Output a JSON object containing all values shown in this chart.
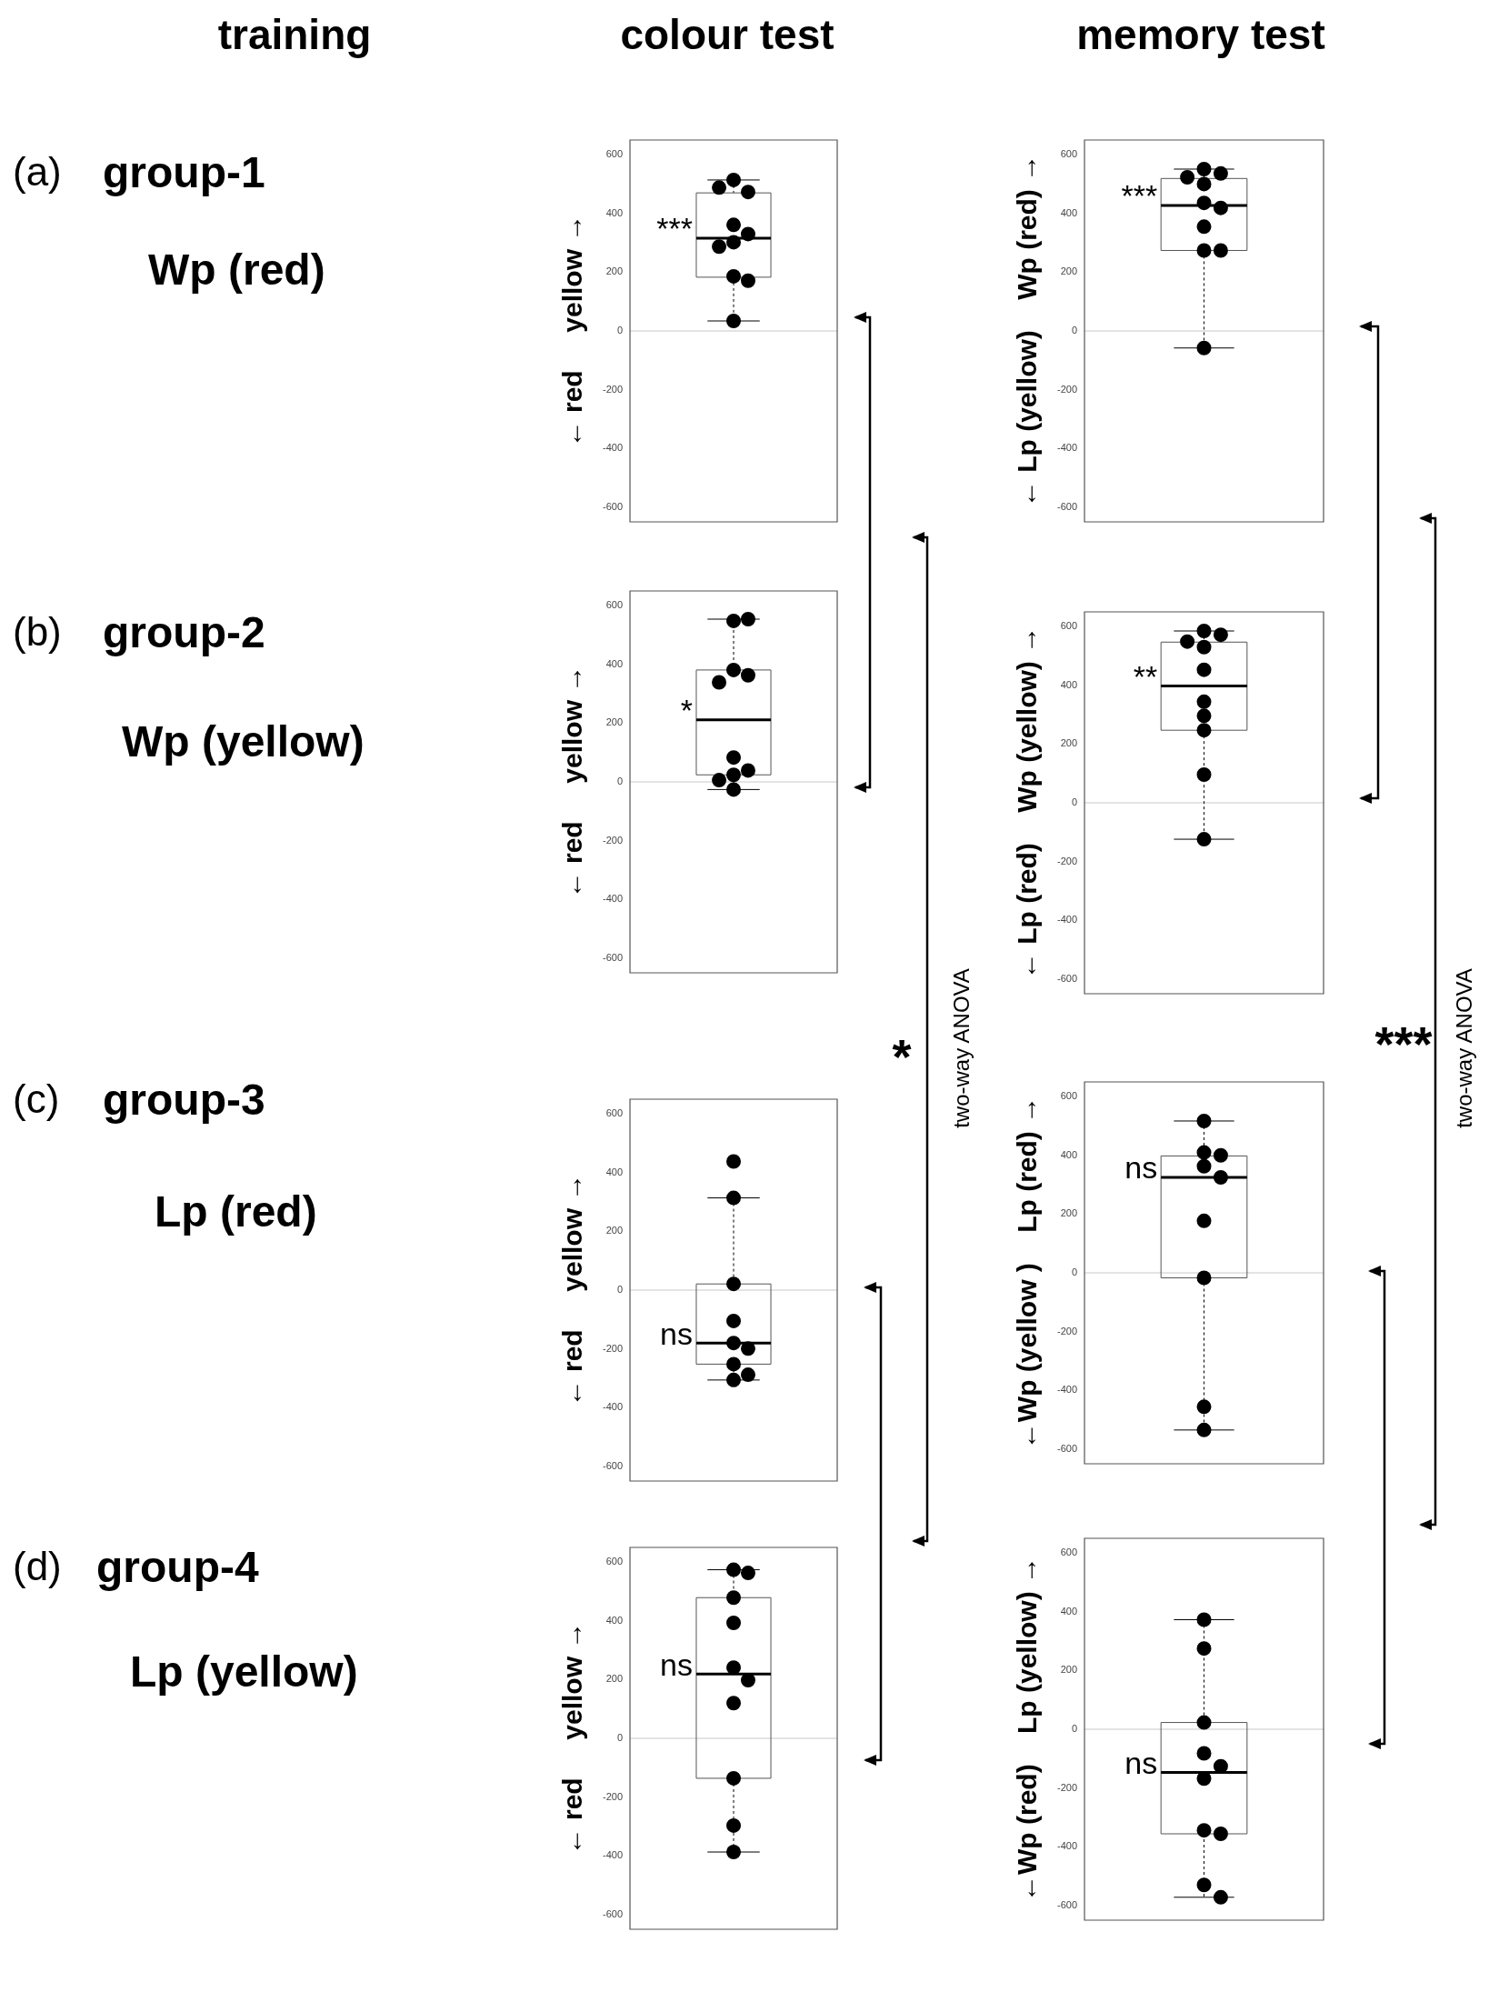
{
  "chart_data": [
    {
      "type": "box",
      "categories": [
        null
      ],
      "ylabel": "← red     yellow →",
      "ylim": [
        -650,
        650
      ],
      "yticks": [
        -600,
        -400,
        -200,
        0,
        200,
        400,
        600
      ],
      "boxes": [
        {
          "low": 34,
          "q1": 183,
          "median": 316,
          "q3": 470,
          "high": 514
        }
      ],
      "series": [
        {
          "type": "scatter",
          "color": "#000000",
          "x": [
            null,
            null,
            null,
            null,
            null,
            null,
            null,
            null,
            null,
            null
          ],
          "values": [
            514,
            473,
            488,
            361,
            330,
            302,
            287,
            186,
            171,
            34
          ]
        }
      ],
      "marker": "circle",
      "annotations": [
        "***"
      ],
      "ref_lines": [
        {
          "axis": "y",
          "value": 0,
          "color": "#c8c8c8"
        }
      ]
    },
    {
      "type": "box",
      "categories": [
        null
      ],
      "ylabel": "← Lp (yellow)    Wp (red) →",
      "ylim": [
        -650,
        650
      ],
      "yticks": [
        -600,
        -400,
        -200,
        0,
        200,
        400,
        600
      ],
      "boxes": [
        {
          "low": -58,
          "q1": 274,
          "median": 427,
          "q3": 519,
          "high": 551
        }
      ],
      "series": [
        {
          "type": "scatter",
          "color": "#000000",
          "x": [
            null,
            null,
            null,
            null,
            null,
            null,
            null,
            null,
            null,
            null
          ],
          "values": [
            551,
            536,
            500,
            523,
            436,
            419,
            355,
            274,
            274,
            -58
          ]
        }
      ],
      "marker": "circle",
      "annotations": [
        "***"
      ],
      "ref_lines": [
        {
          "axis": "y",
          "value": 0,
          "color": "#c8c8c8"
        }
      ]
    },
    {
      "type": "box",
      "categories": [
        null
      ],
      "ylabel": "← red     yellow →",
      "ylim": [
        -650,
        650
      ],
      "yticks": [
        -600,
        -400,
        -200,
        0,
        200,
        400,
        600
      ],
      "boxes": [
        {
          "low": -26,
          "q1": 24,
          "median": 211,
          "q3": 381,
          "high": 554
        }
      ],
      "series": [
        {
          "type": "scatter",
          "color": "#000000",
          "x": [
            null,
            null,
            null,
            null,
            null,
            null,
            null,
            null,
            null,
            null
          ],
          "values": [
            548,
            554,
            381,
            363,
            339,
            83,
            39,
            24,
            6,
            -26
          ]
        }
      ],
      "marker": "circle",
      "annotations": [
        "*"
      ],
      "ref_lines": [
        {
          "axis": "y",
          "value": 0,
          "color": "#c8c8c8"
        }
      ]
    },
    {
      "type": "box",
      "categories": [
        null
      ],
      "ylabel": "← Lp (red)    Wp (yellow) →",
      "ylim": [
        -650,
        650
      ],
      "yticks": [
        -600,
        -400,
        -200,
        0,
        200,
        400,
        600
      ],
      "boxes": [
        {
          "low": -124,
          "q1": 247,
          "median": 398,
          "q3": 547,
          "high": 585
        }
      ],
      "series": [
        {
          "type": "scatter",
          "color": "#000000",
          "x": [
            null,
            null,
            null,
            null,
            null,
            null,
            null,
            null,
            null,
            null
          ],
          "values": [
            585,
            572,
            549,
            530,
            453,
            344,
            296,
            247,
            96,
            -124
          ]
        }
      ],
      "marker": "circle",
      "annotations": [
        "**"
      ],
      "ref_lines": [
        {
          "axis": "y",
          "value": 0,
          "color": "#c8c8c8"
        }
      ]
    },
    {
      "type": "box",
      "categories": [
        null
      ],
      "ylabel": "← red     yellow →",
      "ylim": [
        -650,
        650
      ],
      "yticks": [
        -600,
        -400,
        -200,
        0,
        200,
        400,
        600
      ],
      "boxes": [
        {
          "low": -306,
          "q1": -252,
          "median": -180,
          "q3": 21,
          "high": 314
        }
      ],
      "series": [
        {
          "type": "scatter",
          "color": "#000000",
          "x": [
            null,
            null,
            null,
            null,
            null,
            null,
            null,
            null,
            null
          ],
          "values": [
            438,
            314,
            21,
            -105,
            -180,
            -199,
            -252,
            -288,
            -306
          ]
        }
      ],
      "marker": "circle",
      "annotations": [
        "ns"
      ],
      "ref_lines": [
        {
          "axis": "y",
          "value": 0,
          "color": "#c8c8c8"
        }
      ]
    },
    {
      "type": "box",
      "categories": [
        null
      ],
      "ylabel": "←Wp (yellow )    Lp (red) →",
      "ylim": [
        -650,
        650
      ],
      "yticks": [
        -600,
        -400,
        -200,
        0,
        200,
        400,
        600
      ],
      "boxes": [
        {
          "low": -535,
          "q1": -17,
          "median": 325,
          "q3": 398,
          "high": 517
        }
      ],
      "series": [
        {
          "type": "scatter",
          "color": "#000000",
          "x": [
            null,
            null,
            null,
            null,
            null,
            null,
            null,
            null,
            null
          ],
          "values": [
            517,
            410,
            400,
            363,
            325,
            177,
            -17,
            -456,
            -535
          ]
        }
      ],
      "marker": "circle",
      "annotations": [
        "ns"
      ],
      "ref_lines": [
        {
          "axis": "y",
          "value": 0,
          "color": "#c8c8c8"
        }
      ]
    },
    {
      "type": "box",
      "categories": [
        null
      ],
      "ylabel": "← red     yellow →",
      "ylim": [
        -650,
        650
      ],
      "yticks": [
        -600,
        -400,
        -200,
        0,
        200,
        400,
        600
      ],
      "boxes": [
        {
          "low": -387,
          "q1": -136,
          "median": 219,
          "q3": 479,
          "high": 574
        }
      ],
      "series": [
        {
          "type": "scatter",
          "color": "#000000",
          "x": [
            null,
            null,
            null,
            null,
            null,
            null,
            null,
            null,
            null,
            null
          ],
          "values": [
            574,
            563,
            479,
            393,
            241,
            198,
            120,
            -136,
            -297,
            -387
          ]
        }
      ],
      "marker": "circle",
      "annotations": [
        "ns"
      ],
      "ref_lines": [
        {
          "axis": "y",
          "value": 0,
          "color": "#c8c8c8"
        }
      ]
    },
    {
      "type": "box",
      "categories": [
        null
      ],
      "ylabel": "←Wp (red)    Lp (yellow) →",
      "ylim": [
        -650,
        650
      ],
      "yticks": [
        -600,
        -400,
        -200,
        0,
        200,
        400,
        600
      ],
      "boxes": [
        {
          "low": -572,
          "q1": -356,
          "median": -147,
          "q3": 23,
          "high": 373
        }
      ],
      "series": [
        {
          "type": "scatter",
          "color": "#000000",
          "x": [
            null,
            null,
            null,
            null,
            null,
            null,
            null,
            null,
            null,
            null
          ],
          "values": [
            373,
            275,
            23,
            -82,
            -126,
            -168,
            -344,
            -356,
            -530,
            -572
          ]
        }
      ],
      "marker": "circle",
      "annotations": [
        "ns"
      ],
      "ref_lines": [
        {
          "axis": "y",
          "value": 0,
          "color": "#c8c8c8"
        }
      ]
    },
    {
      "type": "other",
      "annotations": [
        "training",
        "colour test",
        "memory test",
        "(a)",
        "group-1",
        "Wp (red)",
        "(b)",
        "group-2",
        "Wp (yellow)",
        "(c)",
        "group-3",
        "Lp (red)",
        "(d)",
        "group-4",
        "Lp (yellow)",
        "*",
        "two-way ANOVA",
        "***",
        "two-way ANOVA"
      ]
    }
  ]
}
